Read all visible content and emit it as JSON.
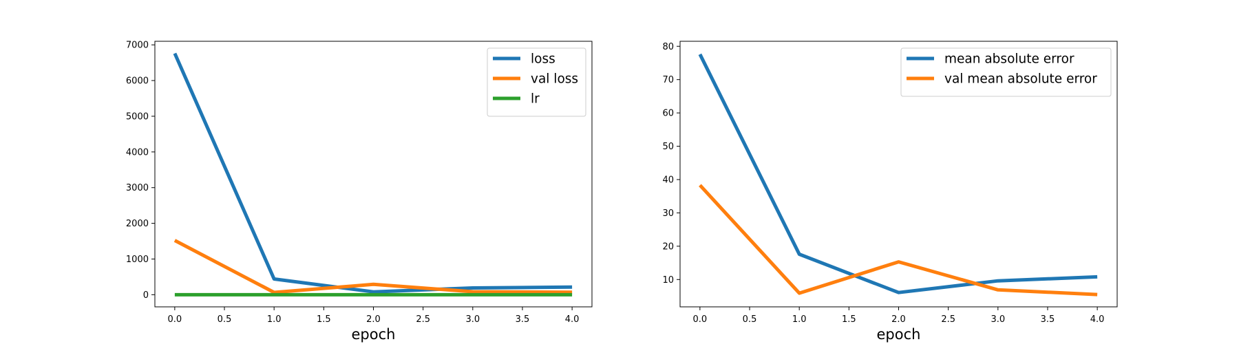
{
  "chart_data": [
    {
      "type": "line",
      "title": "",
      "xlabel": "epoch",
      "ylabel": "",
      "x": [
        0,
        1,
        2,
        3,
        4
      ],
      "xlim": [
        -0.2,
        4.2
      ],
      "ylim": [
        -340,
        7100
      ],
      "xticks": [
        "0.0",
        "0.5",
        "1.0",
        "1.5",
        "2.0",
        "2.5",
        "3.0",
        "3.5",
        "4.0"
      ],
      "yticks": [
        "0",
        "1000",
        "2000",
        "3000",
        "4000",
        "5000",
        "6000",
        "7000"
      ],
      "grid": false,
      "legend_position": "top-right",
      "series": [
        {
          "name": "loss",
          "color": "#1f77b4",
          "values": [
            6760,
            440,
            80,
            190,
            215
          ]
        },
        {
          "name": "val loss",
          "color": "#ff7f0e",
          "values": [
            1520,
            65,
            290,
            85,
            70
          ]
        },
        {
          "name": "lr",
          "color": "#2ca02c",
          "values": [
            0.001,
            0.001,
            0.001,
            0.001,
            0.001
          ]
        }
      ]
    },
    {
      "type": "line",
      "title": "",
      "xlabel": "epoch",
      "ylabel": "",
      "x": [
        0,
        1,
        2,
        3,
        4
      ],
      "xlim": [
        -0.2,
        4.2
      ],
      "ylim": [
        1.8,
        81.5
      ],
      "xticks": [
        "0.0",
        "0.5",
        "1.0",
        "1.5",
        "2.0",
        "2.5",
        "3.0",
        "3.5",
        "4.0"
      ],
      "yticks": [
        "10",
        "20",
        "30",
        "40",
        "50",
        "60",
        "70",
        "80"
      ],
      "grid": false,
      "legend_position": "top-right",
      "series": [
        {
          "name": "mean absolute error",
          "color": "#1f77b4",
          "values": [
            77.6,
            17.6,
            6.1,
            9.6,
            10.8
          ]
        },
        {
          "name": "val mean absolute error",
          "color": "#ff7f0e",
          "values": [
            38.3,
            5.9,
            15.3,
            6.9,
            5.5
          ]
        }
      ]
    }
  ]
}
